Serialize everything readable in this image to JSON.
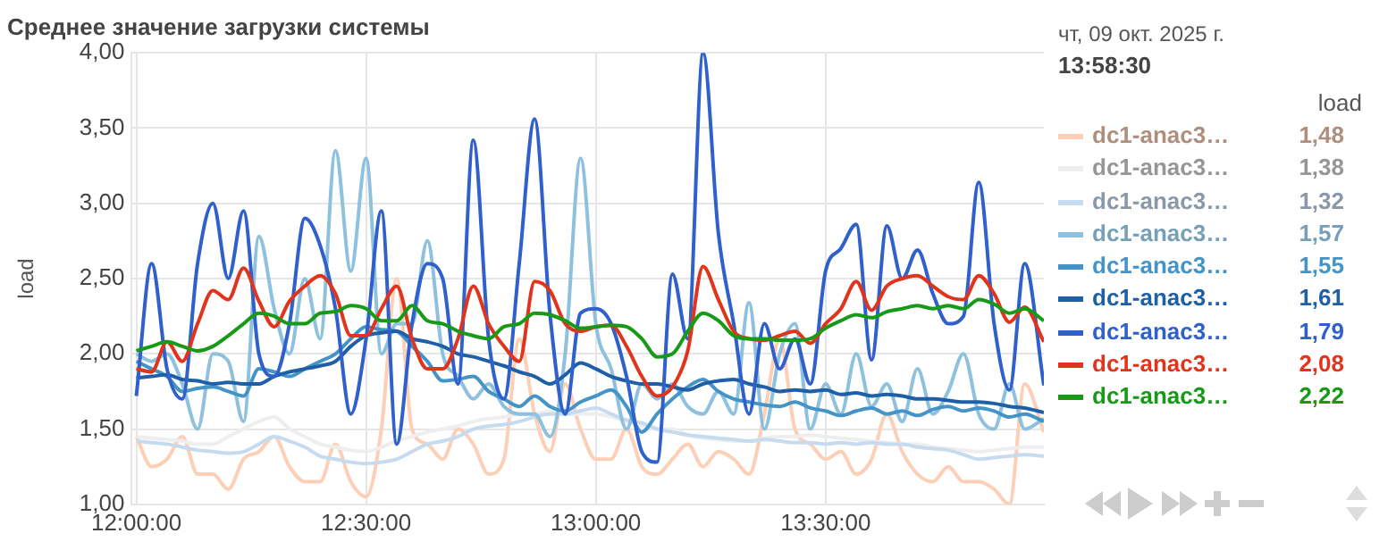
{
  "chart_data": {
    "type": "line",
    "title": "Среднее значение загрузки системы",
    "ylabel": "load",
    "legend_title": "load",
    "annotations": [
      "чт, 09 окт. 2025 г.",
      "13:58:30",
      "1,48",
      "1,38",
      "1,32",
      "1,57",
      "1,55",
      "1,61",
      "1,79",
      "2,08",
      "2,22"
    ],
    "x": [
      12,
      12.0333,
      12.0667,
      12.1,
      12.1333,
      12.1667,
      12.2,
      12.2333,
      12.2667,
      12.3,
      12.3333,
      12.3667,
      12.4,
      12.4333,
      12.4667,
      12.5,
      12.5333,
      12.5667,
      12.6,
      12.6333,
      12.6667,
      12.7,
      12.7333,
      12.7667,
      12.8,
      12.8333,
      12.8667,
      12.9,
      12.9333,
      12.9667,
      13,
      13.0333,
      13.0667,
      13.1,
      13.1333,
      13.1667,
      13.2,
      13.2333,
      13.2667,
      13.3,
      13.3333,
      13.3667,
      13.4,
      13.4333,
      13.4667,
      13.5,
      13.5333,
      13.5667,
      13.6,
      13.6333,
      13.6667,
      13.7,
      13.7333,
      13.7667,
      13.8,
      13.8333,
      13.8667,
      13.9,
      13.9333,
      13.975
    ],
    "xlim": [
      11.99,
      13.975
    ],
    "xticks": [
      {
        "value": 12,
        "label": "12:00:00"
      },
      {
        "value": 12.5,
        "label": "12:30:00"
      },
      {
        "value": 13,
        "label": "13:00:00"
      },
      {
        "value": 13.5,
        "label": "13:30:00"
      }
    ],
    "ylim": [
      1,
      4
    ],
    "yticks": [
      {
        "value": 1,
        "label": "1,00"
      },
      {
        "value": 1.5,
        "label": "1,50"
      },
      {
        "value": 2,
        "label": "2,00"
      },
      {
        "value": 2.5,
        "label": "2,50"
      },
      {
        "value": 3,
        "label": "3,00"
      },
      {
        "value": 3.5,
        "label": "3,50"
      },
      {
        "value": 4,
        "label": "4,00"
      }
    ],
    "grid": true,
    "legend": "right",
    "series": [
      {
        "name": "dc1-anac3…",
        "color": "#fccfb6",
        "values": [
          1.45,
          1.25,
          1.3,
          1.45,
          1.2,
          1.2,
          1.1,
          1.3,
          1.35,
          1.45,
          1.25,
          1.15,
          1.15,
          1.4,
          1.15,
          1.05,
          1.5,
          2.5,
          1.5,
          1.4,
          1.3,
          1.5,
          1.4,
          1.2,
          1.3,
          2.1,
          1.6,
          1.35,
          1.8,
          1.5,
          1.3,
          1.3,
          1.5,
          1.25,
          1.2,
          1.3,
          1.4,
          1.25,
          1.35,
          1.3,
          1.2,
          1.6,
          2.1,
          1.5,
          1.4,
          1.3,
          1.35,
          1.2,
          1.3,
          1.6,
          1.35,
          1.2,
          1.15,
          1.25,
          1.15,
          1.15,
          1.1,
          1.0,
          1.8,
          1.48
        ]
      },
      {
        "name": "dc1-anac3…",
        "color": "#eeeeee",
        "values": [
          1.45,
          1.44,
          1.43,
          1.42,
          1.4,
          1.4,
          1.45,
          1.5,
          1.55,
          1.58,
          1.5,
          1.45,
          1.4,
          1.38,
          1.36,
          1.35,
          1.38,
          1.42,
          1.45,
          1.48,
          1.5,
          1.52,
          1.55,
          1.57,
          1.58,
          1.6,
          1.6,
          1.62,
          1.6,
          1.6,
          1.6,
          1.58,
          1.55,
          1.52,
          1.5,
          1.5,
          1.46,
          1.44,
          1.43,
          1.42,
          1.42,
          1.44,
          1.45,
          1.45,
          1.46,
          1.45,
          1.44,
          1.43,
          1.42,
          1.41,
          1.4,
          1.4,
          1.38,
          1.37,
          1.36,
          1.35,
          1.36,
          1.37,
          1.38,
          1.38
        ]
      },
      {
        "name": "dc1-anac3…",
        "color": "#c6dbef",
        "values": [
          1.42,
          1.41,
          1.4,
          1.38,
          1.36,
          1.35,
          1.34,
          1.35,
          1.4,
          1.45,
          1.42,
          1.38,
          1.32,
          1.3,
          1.28,
          1.27,
          1.28,
          1.3,
          1.35,
          1.4,
          1.42,
          1.45,
          1.5,
          1.52,
          1.53,
          1.55,
          1.58,
          1.6,
          1.6,
          1.62,
          1.64,
          1.6,
          1.56,
          1.54,
          1.5,
          1.48,
          1.46,
          1.45,
          1.44,
          1.43,
          1.42,
          1.43,
          1.42,
          1.41,
          1.41,
          1.4,
          1.41,
          1.4,
          1.41,
          1.4,
          1.4,
          1.38,
          1.37,
          1.36,
          1.33,
          1.3,
          1.31,
          1.32,
          1.33,
          1.32
        ]
      },
      {
        "name": "dc1-anac3…",
        "color": "#8dc1de",
        "values": [
          2.0,
          1.95,
          2.0,
          1.8,
          1.5,
          2.0,
          1.95,
          1.55,
          2.78,
          2.3,
          2.0,
          2.5,
          2.1,
          3.35,
          2.55,
          3.3,
          2.0,
          2.2,
          2.2,
          2.75,
          2.0,
          1.85,
          1.7,
          1.8,
          1.65,
          1.6,
          1.6,
          1.45,
          2.0,
          3.3,
          2.2,
          1.9,
          1.5,
          1.8,
          1.7,
          1.8,
          1.65,
          1.6,
          1.75,
          1.6,
          2.34,
          1.5,
          2.0,
          2.2,
          1.5,
          1.8,
          1.6,
          2.0,
          1.65,
          1.8,
          1.55,
          1.9,
          1.6,
          1.75,
          2.0,
          1.6,
          1.5,
          1.8,
          1.5,
          1.57
        ]
      },
      {
        "name": "dc1-anac3…",
        "color": "#4594c8",
        "values": [
          1.95,
          1.9,
          1.85,
          1.75,
          1.77,
          1.78,
          1.75,
          1.72,
          1.9,
          1.88,
          1.85,
          1.9,
          1.95,
          2.0,
          2.1,
          2.18,
          2.16,
          2.15,
          2.05,
          1.95,
          1.82,
          1.83,
          1.85,
          1.75,
          1.7,
          1.65,
          1.72,
          1.65,
          1.62,
          1.68,
          1.72,
          1.76,
          1.65,
          1.48,
          1.6,
          1.7,
          1.78,
          1.83,
          1.75,
          1.7,
          1.68,
          1.66,
          1.65,
          1.68,
          1.64,
          1.62,
          1.59,
          1.62,
          1.64,
          1.6,
          1.62,
          1.59,
          1.63,
          1.65,
          1.62,
          1.64,
          1.62,
          1.58,
          1.6,
          1.55
        ]
      },
      {
        "name": "dc1-anac3…",
        "color": "#1f5fa6",
        "values": [
          1.84,
          1.85,
          1.86,
          1.83,
          1.82,
          1.8,
          1.81,
          1.8,
          1.8,
          1.85,
          1.88,
          1.9,
          1.92,
          1.95,
          2.05,
          2.12,
          2.14,
          2.15,
          2.1,
          2.08,
          2.05,
          2.0,
          1.98,
          1.95,
          1.92,
          1.88,
          1.85,
          1.8,
          1.86,
          1.94,
          1.9,
          1.85,
          1.82,
          1.8,
          1.8,
          1.78,
          1.76,
          1.8,
          1.82,
          1.83,
          1.8,
          1.78,
          1.75,
          1.76,
          1.75,
          1.76,
          1.73,
          1.74,
          1.72,
          1.73,
          1.72,
          1.7,
          1.7,
          1.69,
          1.68,
          1.68,
          1.67,
          1.65,
          1.64,
          1.61
        ]
      },
      {
        "name": "dc1-anac3…",
        "color": "#3060cc",
        "values": [
          1.72,
          2.6,
          1.9,
          1.7,
          2.6,
          3.0,
          2.5,
          2.95,
          2.0,
          1.85,
          2.2,
          2.9,
          2.72,
          2.3,
          1.6,
          2.1,
          2.95,
          1.4,
          2.2,
          2.6,
          2.5,
          1.8,
          3.42,
          2.1,
          1.7,
          2.6,
          3.56,
          2.27,
          1.6,
          2.27,
          2.3,
          2.2,
          1.85,
          1.35,
          1.28,
          2.53,
          2.1,
          4.0,
          2.8,
          2.2,
          1.6,
          2.2,
          1.9,
          2.1,
          1.8,
          2.55,
          2.7,
          2.86,
          1.96,
          2.85,
          2.5,
          2.69,
          2.4,
          2.2,
          2.25,
          3.14,
          2.2,
          1.76,
          2.6,
          1.79
        ]
      },
      {
        "name": "dc1-anac3…",
        "color": "#e0351c",
        "values": [
          1.9,
          1.88,
          2.08,
          1.95,
          2.2,
          2.42,
          2.36,
          2.57,
          2.35,
          2.18,
          2.35,
          2.45,
          2.52,
          2.4,
          2.12,
          2.12,
          2.3,
          2.45,
          2.1,
          1.9,
          1.9,
          2.1,
          2.45,
          2.2,
          2.05,
          1.95,
          2.48,
          2.42,
          2.2,
          2.15,
          2.18,
          2.19,
          2.05,
          1.85,
          1.72,
          1.78,
          2.02,
          2.58,
          2.36,
          2.15,
          2.1,
          2.09,
          2.12,
          2.15,
          2.07,
          2.2,
          2.3,
          2.48,
          2.29,
          2.45,
          2.5,
          2.52,
          2.45,
          2.38,
          2.36,
          2.52,
          2.4,
          2.21,
          2.31,
          2.08
        ]
      },
      {
        "name": "dc1-anac3…",
        "color": "#179a17",
        "values": [
          2.02,
          2.05,
          2.08,
          2.05,
          2.02,
          2.05,
          2.12,
          2.2,
          2.27,
          2.25,
          2.2,
          2.2,
          2.27,
          2.28,
          2.32,
          2.3,
          2.22,
          2.22,
          2.32,
          2.22,
          2.2,
          2.15,
          2.12,
          2.1,
          2.18,
          2.2,
          2.27,
          2.26,
          2.22,
          2.17,
          2.18,
          2.19,
          2.18,
          2.1,
          1.98,
          2.0,
          2.15,
          2.27,
          2.22,
          2.12,
          2.1,
          2.1,
          2.09,
          2.09,
          2.1,
          2.17,
          2.22,
          2.26,
          2.24,
          2.28,
          2.3,
          2.32,
          2.3,
          2.32,
          2.3,
          2.36,
          2.33,
          2.27,
          2.3,
          2.22
        ]
      }
    ]
  }
}
